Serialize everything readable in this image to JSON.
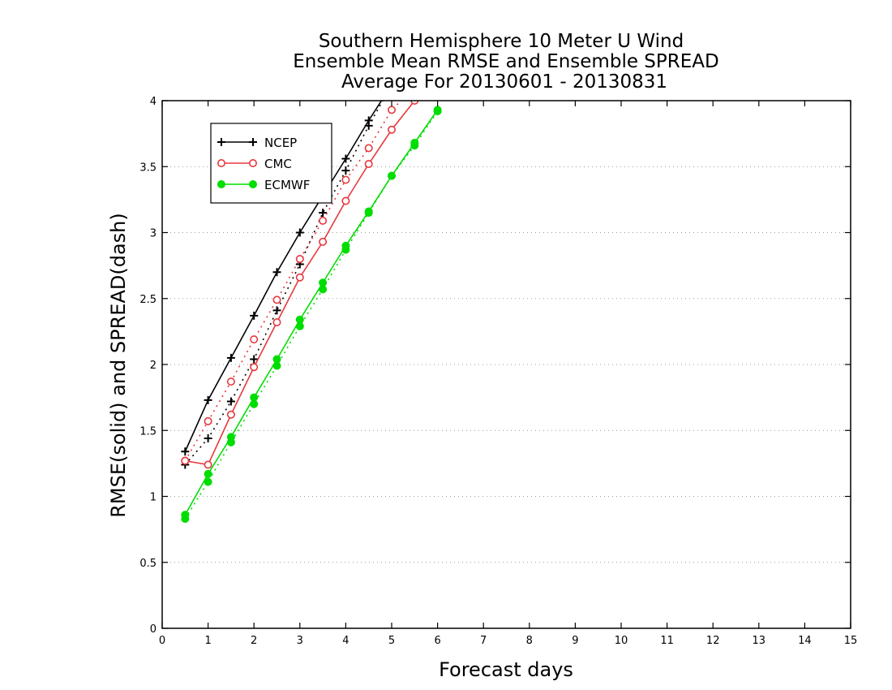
{
  "chart_data": {
    "type": "line",
    "title": [
      "Southern Hemisphere 10 Meter U Wind",
      "Ensemble Mean RMSE and Ensemble SPREAD",
      "Average For 20130601 - 20130831"
    ],
    "xlabel": "Forecast days",
    "ylabel": "RMSE(solid) and SPREAD(dash)",
    "xlim": [
      0,
      15
    ],
    "ylim": [
      0,
      4
    ],
    "xticks": [
      "0",
      "1",
      "2",
      "3",
      "4",
      "5",
      "6",
      "7",
      "8",
      "9",
      "10",
      "11",
      "12",
      "13",
      "14",
      "15"
    ],
    "yticks": [
      "0",
      "0.5",
      "1",
      "1.5",
      "2",
      "2.5",
      "3",
      "3.5",
      "4"
    ],
    "grid": "horizontal dotted",
    "legend_position": "top-left",
    "series": [
      {
        "name": "NCEP",
        "metric": "RMSE",
        "line_style": "solid",
        "color": "#000000",
        "marker": "plus",
        "x": [
          0.5,
          1,
          1.5,
          2,
          2.5,
          3,
          3.5,
          4,
          4.5,
          5
        ],
        "y": [
          1.34,
          1.73,
          2.05,
          2.37,
          2.7,
          3.0,
          3.28,
          3.56,
          3.85,
          4.12
        ]
      },
      {
        "name": "NCEP",
        "metric": "SPREAD",
        "line_style": "dotted",
        "color": "#000000",
        "marker": "plus",
        "x": [
          0.5,
          1,
          1.5,
          2,
          2.5,
          3,
          3.5,
          4,
          4.5,
          5
        ],
        "y": [
          1.24,
          1.44,
          1.72,
          2.04,
          2.41,
          2.76,
          3.15,
          3.47,
          3.81,
          4.12
        ]
      },
      {
        "name": "CMC",
        "metric": "RMSE",
        "line_style": "solid",
        "color": "#e8383d",
        "marker": "open-circle",
        "x": [
          0.5,
          1,
          1.5,
          2,
          2.5,
          3,
          3.5,
          4,
          4.5,
          5,
          5.5
        ],
        "y": [
          1.27,
          1.24,
          1.62,
          1.98,
          2.32,
          2.66,
          2.93,
          3.24,
          3.52,
          3.78,
          4.0
        ]
      },
      {
        "name": "CMC",
        "metric": "SPREAD",
        "line_style": "dotted",
        "color": "#e8383d",
        "marker": "open-circle",
        "x": [
          0.5,
          1,
          1.5,
          2,
          2.5,
          3,
          3.5,
          4,
          4.5,
          5,
          5.5
        ],
        "y": [
          1.27,
          1.57,
          1.87,
          2.19,
          2.49,
          2.8,
          3.09,
          3.4,
          3.64,
          3.93,
          4.1
        ]
      },
      {
        "name": "ECMWF",
        "metric": "RMSE",
        "line_style": "solid",
        "color": "#00dd00",
        "marker": "filled-circle",
        "x": [
          0.5,
          1,
          1.5,
          2,
          2.5,
          3,
          3.5,
          4,
          4.5,
          5,
          5.5,
          6
        ],
        "y": [
          0.86,
          1.17,
          1.45,
          1.75,
          2.04,
          2.34,
          2.62,
          2.9,
          3.16,
          3.43,
          3.68,
          3.93
        ]
      },
      {
        "name": "ECMWF",
        "metric": "SPREAD",
        "line_style": "dotted",
        "color": "#00dd00",
        "marker": "filled-circle",
        "x": [
          0.5,
          1,
          1.5,
          2,
          2.5,
          3,
          3.5,
          4,
          4.5,
          5,
          5.5,
          6
        ],
        "y": [
          0.83,
          1.11,
          1.41,
          1.7,
          1.99,
          2.29,
          2.57,
          2.87,
          3.15,
          3.43,
          3.66,
          3.92
        ]
      }
    ],
    "legend": [
      {
        "name": "NCEP",
        "color": "#000000",
        "marker": "plus"
      },
      {
        "name": "CMC",
        "color": "#e8383d",
        "marker": "open-circle"
      },
      {
        "name": "ECMWF",
        "color": "#00dd00",
        "marker": "filled-circle"
      }
    ]
  }
}
